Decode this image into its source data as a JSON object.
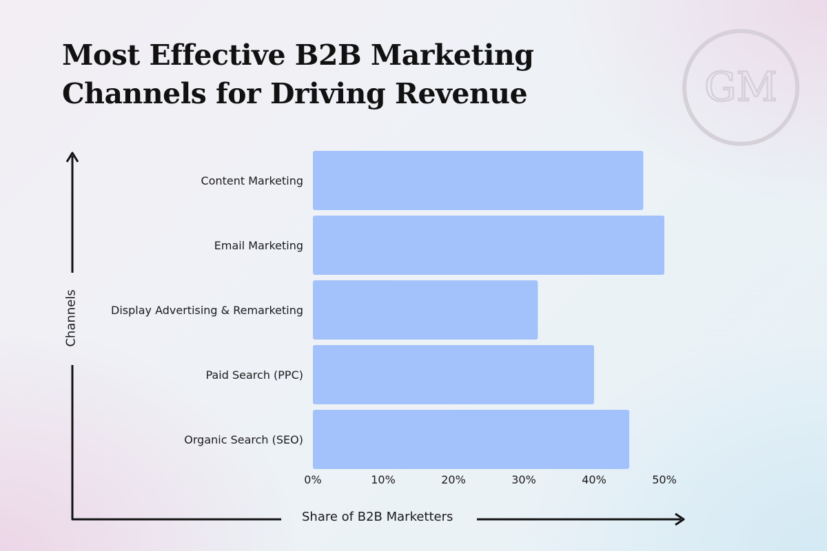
{
  "title_line1": "Most Effective B2B Marketing",
  "title_line2": "Channels for Driving Revenue",
  "logo_text": "GM",
  "colors": {
    "bar": "#a3c1fb",
    "axis": "#111111",
    "logo": "#d6d0d8"
  },
  "chart_data": {
    "type": "bar",
    "orientation": "horizontal",
    "categories": [
      "Content Marketing",
      "Email Marketing",
      "Display Advertising & Remarketing",
      "Paid Search (PPC)",
      "Organic Search (SEO)"
    ],
    "values": [
      47,
      50,
      32,
      40,
      45
    ],
    "unit": "%",
    "xlabel": "Share of B2B Marketters",
    "ylabel": "Channels",
    "xlim": [
      0,
      50
    ],
    "xticks": [
      "0%",
      "10%",
      "20%",
      "30%",
      "40%",
      "50%"
    ],
    "grid": false,
    "legend": "none"
  }
}
